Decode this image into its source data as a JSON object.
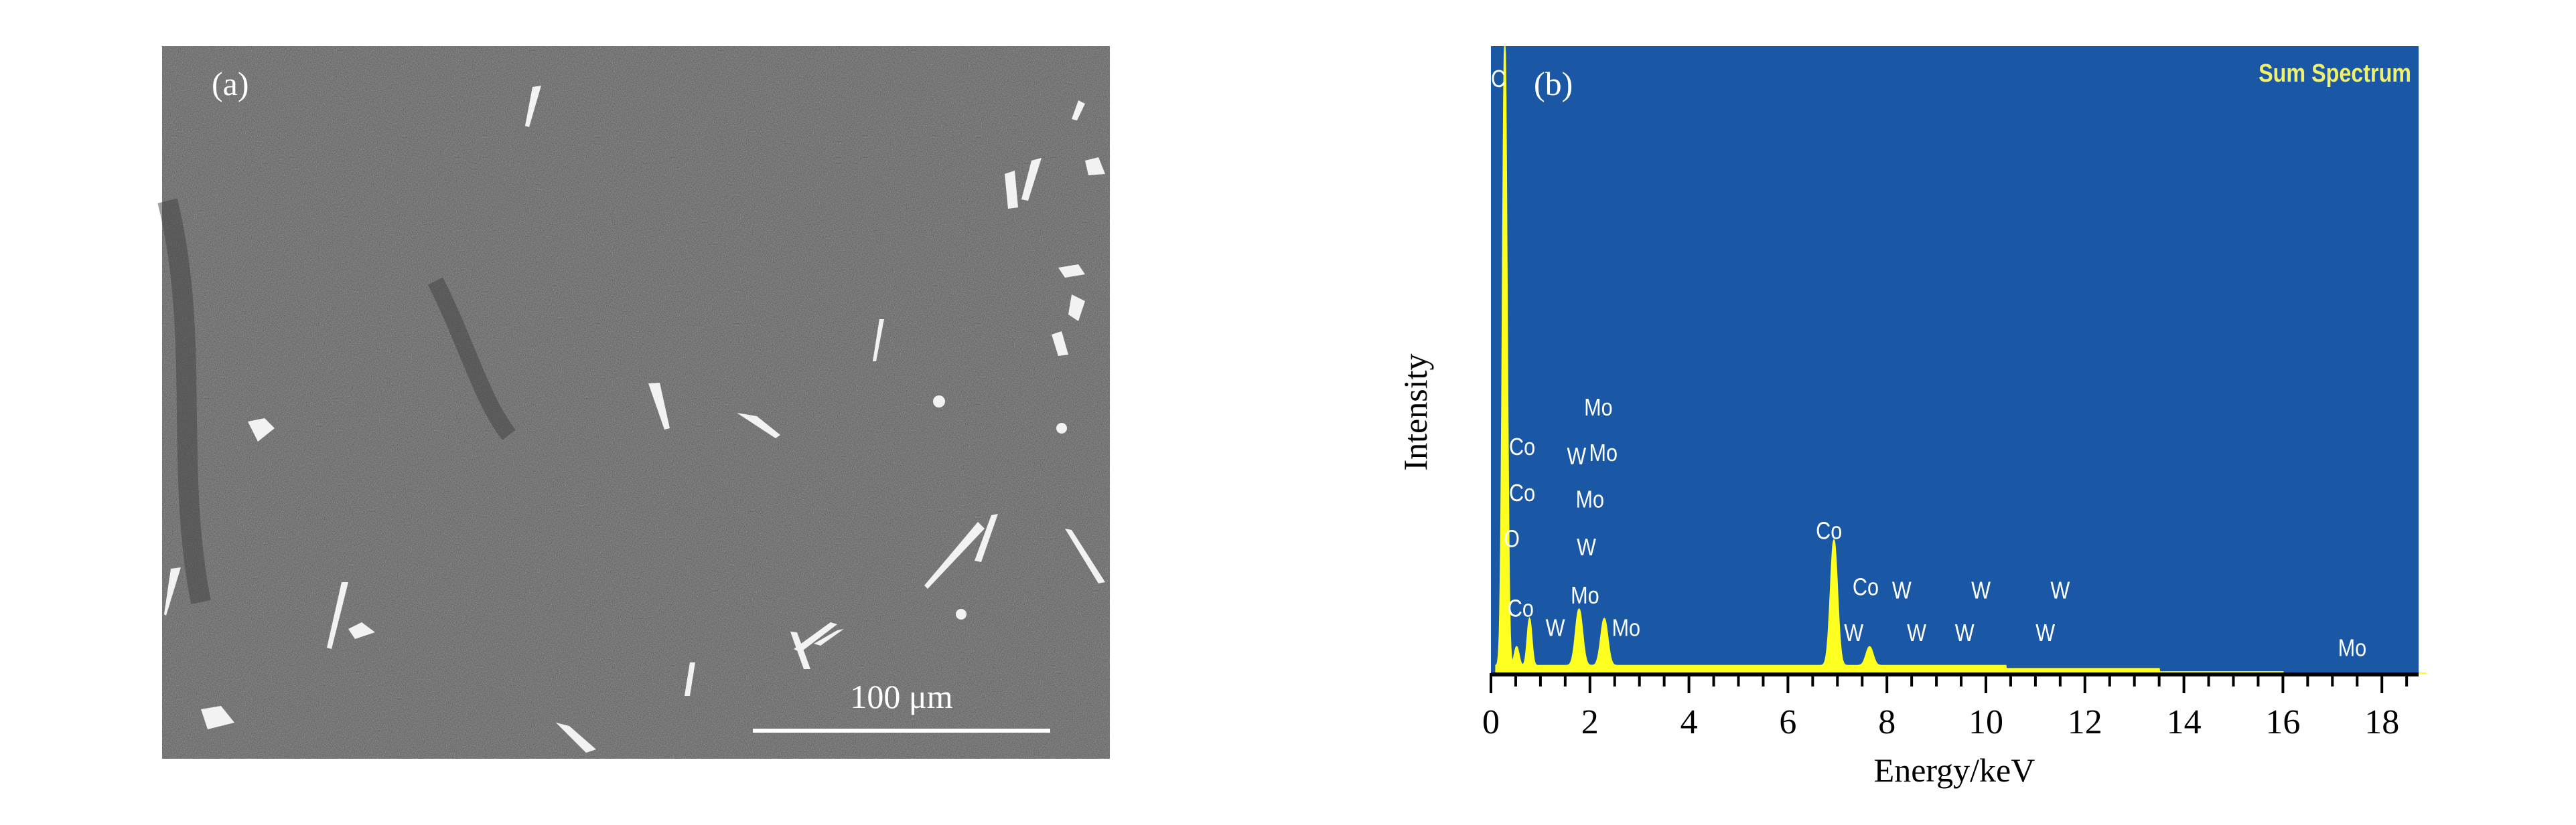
{
  "panel_a": {
    "label": "(a)",
    "scale_bar_label": "100 μm",
    "colors": {
      "background": "#575757",
      "particles": "#f4f4f4"
    }
  },
  "panel_b": {
    "label": "(b)"
  },
  "chart_data": {
    "type": "area",
    "title": "Sum Spectrum",
    "xlabel": "Energy/keV",
    "ylabel": "Intensity",
    "xlim": [
      0,
      19
    ],
    "ylim": [
      0,
      1
    ],
    "xticks": [
      "0",
      "2",
      "4",
      "6",
      "8",
      "10",
      "12",
      "14",
      "16",
      "18"
    ],
    "grid": false,
    "colors": {
      "plot_background": "#1a58a6",
      "spectrum": "#ffff20",
      "peak_labels": "#ffffff",
      "title": "#f0f070"
    },
    "peaks": [
      {
        "element": "C",
        "energy": 0.28,
        "intensity": 1.0
      },
      {
        "element": "O",
        "energy": 0.52,
        "intensity": 0.03
      },
      {
        "element": "Co L",
        "energy": 0.78,
        "intensity": 0.075
      },
      {
        "element": "W/Mo",
        "energy": 1.78,
        "intensity": 0.09
      },
      {
        "element": "Mo L",
        "energy": 2.29,
        "intensity": 0.075
      },
      {
        "element": "Co Ka",
        "energy": 6.93,
        "intensity": 0.2
      },
      {
        "element": "Co Kb",
        "energy": 7.65,
        "intensity": 0.03
      }
    ],
    "background_levels": [
      {
        "from": 0.1,
        "to": 10.4,
        "intensity": 0.012
      },
      {
        "from": 10.4,
        "to": 13.5,
        "intensity": 0.007
      },
      {
        "from": 13.5,
        "to": 16.0,
        "intensity": 0.002
      }
    ],
    "peak_labels": [
      {
        "text": "C",
        "energy": 0.15,
        "intensity": 0.95
      },
      {
        "text": "Co",
        "energy": 0.63,
        "intensity": 0.363
      },
      {
        "text": "Co",
        "energy": 0.63,
        "intensity": 0.289
      },
      {
        "text": "O",
        "energy": 0.42,
        "intensity": 0.216
      },
      {
        "text": "Co",
        "energy": 0.6,
        "intensity": 0.105
      },
      {
        "text": "W",
        "energy": 1.3,
        "intensity": 0.074
      },
      {
        "text": "Mo",
        "energy": 2.17,
        "intensity": 0.426
      },
      {
        "text": "W",
        "energy": 1.73,
        "intensity": 0.348
      },
      {
        "text": "Mo",
        "energy": 2.27,
        "intensity": 0.353
      },
      {
        "text": "Mo",
        "energy": 2.0,
        "intensity": 0.279
      },
      {
        "text": "W",
        "energy": 1.93,
        "intensity": 0.203
      },
      {
        "text": "Mo",
        "energy": 1.9,
        "intensity": 0.126
      },
      {
        "text": "Mo",
        "energy": 2.73,
        "intensity": 0.074
      },
      {
        "text": "Co",
        "energy": 6.83,
        "intensity": 0.229
      },
      {
        "text": "Co",
        "energy": 7.57,
        "intensity": 0.139
      },
      {
        "text": "W",
        "energy": 7.33,
        "intensity": 0.066
      },
      {
        "text": "W",
        "energy": 8.3,
        "intensity": 0.134
      },
      {
        "text": "W",
        "energy": 8.6,
        "intensity": 0.066
      },
      {
        "text": "W",
        "energy": 9.57,
        "intensity": 0.066
      },
      {
        "text": "W",
        "energy": 9.9,
        "intensity": 0.134
      },
      {
        "text": "W",
        "energy": 11.2,
        "intensity": 0.066
      },
      {
        "text": "W",
        "energy": 11.5,
        "intensity": 0.134
      },
      {
        "text": "Mo",
        "energy": 17.4,
        "intensity": 0.042
      }
    ]
  }
}
